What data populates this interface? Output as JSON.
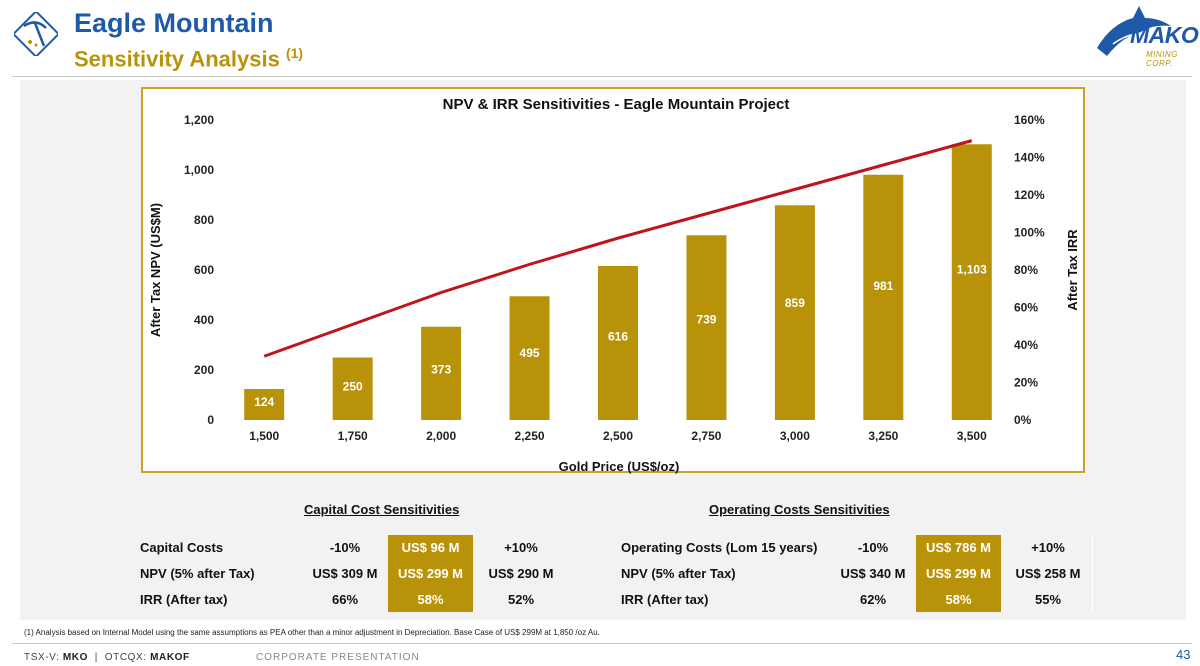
{
  "header": {
    "title": "Eagle Mountain",
    "subtitle": "Sensitivity Analysis",
    "subtitle_note": "(1)",
    "icon": "mining-pick-icon"
  },
  "logo": {
    "name": "MAKO",
    "tagline": "MINING CORP.",
    "icon": "shark-icon"
  },
  "chart_data": {
    "type": "bar+line",
    "title": "NPV & IRR Sensitivities - Eagle Mountain Project",
    "xlabel": "Gold Price (US$/oz)",
    "ylabel": "After Tax NPV (US$M)",
    "y2label": "After Tax IRR",
    "categories": [
      "1,500",
      "1,750",
      "2,000",
      "2,250",
      "2,500",
      "2,750",
      "3,000",
      "3,250",
      "3,500"
    ],
    "series": [
      {
        "name": "After Tax NPV (US$M)",
        "type": "bar",
        "axis": "left",
        "values": [
          124,
          250,
          373,
          495,
          616,
          739,
          859,
          981,
          1103
        ],
        "labels": [
          "124",
          "250",
          "373",
          "495",
          "616",
          "739",
          "859",
          "981",
          "1,103"
        ],
        "color": "#b8930a"
      },
      {
        "name": "After Tax IRR",
        "type": "line",
        "axis": "right",
        "values": [
          34,
          51,
          68,
          83,
          97,
          110,
          123,
          136,
          149
        ],
        "color": "#c0141c"
      }
    ],
    "ylim": [
      0,
      1200
    ],
    "yticks": [
      "0",
      "200",
      "400",
      "600",
      "800",
      "1,000",
      "1,200"
    ],
    "y2lim": [
      0,
      160
    ],
    "y2ticks": [
      "0%",
      "20%",
      "40%",
      "60%",
      "80%",
      "100%",
      "120%",
      "140%",
      "160%"
    ],
    "frame_color": "#c9a227"
  },
  "capital_table": {
    "title": "Capital Cost Sensitivities",
    "rows": [
      {
        "label": "Capital Costs",
        "low": "-10%",
        "base": "US$ 96 M",
        "high": "+10%"
      },
      {
        "label": "NPV (5% after Tax)",
        "low": "US$ 309 M",
        "base": "US$ 299 M",
        "high": "US$ 290 M"
      },
      {
        "label": "IRR (After tax)",
        "low": "66%",
        "base": "58%",
        "high": "52%"
      }
    ]
  },
  "operating_table": {
    "title": "Operating Costs Sensitivities",
    "rows": [
      {
        "label": "Operating Costs (Lom 15 years)",
        "low": "-10%",
        "base": "US$ 786 M",
        "high": "+10%"
      },
      {
        "label": "NPV (5% after Tax)",
        "low": "US$ 340 M",
        "base": "US$ 299 M",
        "high": "US$ 258 M"
      },
      {
        "label": "IRR (After tax)",
        "low": "62%",
        "base": "58%",
        "high": "55%"
      }
    ]
  },
  "footer": {
    "footnote": "(1)     Analysis based on Internal Model using the same assumptions as PEA other than a minor adjustment in Depreciation. Base Case of US$ 299M at 1,850 /oz Au.",
    "exchange1_label": "TSX-V:",
    "exchange1_ticker": "MKO",
    "separator": "|",
    "exchange2_label": "OTCQX:",
    "exchange2_ticker": "MAKOF",
    "presentation": "CORPORATE PRESENTATION",
    "page": "43"
  },
  "colors": {
    "accent_blue": "#1f5aa8",
    "gold": "#b8930a",
    "red_line": "#c0141c"
  }
}
